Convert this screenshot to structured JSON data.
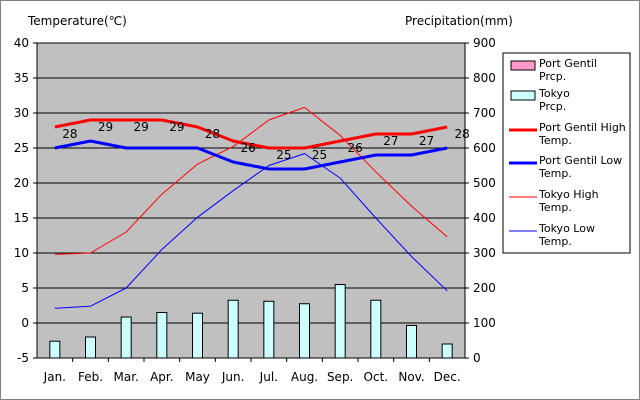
{
  "chart_data": {
    "type": "bar+line",
    "left_axis_title": "Temperature(℃)",
    "right_axis_title": "Precipitation(mm)",
    "months": [
      "Jan.",
      "Feb.",
      "Mar.",
      "Apr.",
      "May",
      "Jun.",
      "Jul.",
      "Aug.",
      "Sep.",
      "Oct.",
      "Nov.",
      "Dec."
    ],
    "temp_range": [
      -5,
      40
    ],
    "temp_ticks": [
      "40",
      "35",
      "30",
      "25",
      "20",
      "15",
      "10",
      "5",
      "0",
      "-5"
    ],
    "precip_range": [
      0,
      900
    ],
    "precip_ticks": [
      "900",
      "800",
      "700",
      "600",
      "500",
      "400",
      "300",
      "200",
      "100",
      "0"
    ],
    "series": [
      {
        "name": "Port Gentil Prcp.",
        "kind": "bar",
        "color": "#ff99cc",
        "values": [
          null,
          null,
          null,
          null,
          null,
          null,
          null,
          null,
          null,
          null,
          null,
          null
        ]
      },
      {
        "name": "Tokyo Prcp.",
        "kind": "bar",
        "color": "#ccffff",
        "values": [
          48,
          60,
          117,
          130,
          128,
          165,
          162,
          155,
          210,
          165,
          93,
          40
        ]
      },
      {
        "name": "Port Gentil High Temp.",
        "kind": "line",
        "color": "#ff0000",
        "width": "thick",
        "values": [
          28,
          29,
          29,
          29,
          28,
          26,
          25,
          25,
          26,
          27,
          27,
          28
        ]
      },
      {
        "name": "Port Gentil Low Temp.",
        "kind": "line",
        "color": "#0000ff",
        "width": "thick",
        "values": [
          25,
          26,
          25,
          25,
          25,
          23,
          22,
          22,
          23,
          24,
          24,
          25
        ]
      },
      {
        "name": "Tokyo High Temp.",
        "kind": "line",
        "color": "#ff0000",
        "width": "thin",
        "values": [
          9.8,
          10.0,
          13.0,
          18.4,
          22.7,
          25.2,
          29.0,
          30.8,
          26.8,
          21.6,
          16.7,
          12.3
        ]
      },
      {
        "name": "Tokyo Low Temp.",
        "kind": "line",
        "color": "#0000ff",
        "width": "thin",
        "values": [
          2.1,
          2.4,
          5.0,
          10.5,
          15.1,
          18.9,
          22.5,
          24.2,
          20.7,
          15.0,
          9.5,
          4.6
        ]
      }
    ],
    "data_labels": {
      "series": "Port Gentil High Temp.",
      "values": [
        "28",
        "29",
        "29",
        "29",
        "28",
        "26",
        "25",
        "25",
        "26",
        "27",
        "27",
        "28"
      ]
    },
    "legend": [
      "Port Gentil Prcp.",
      "Tokyo Prcp.",
      "Port Gentil High Temp.",
      "Port Gentil Low Temp.",
      "Tokyo High Temp.",
      "Tokyo Low Temp."
    ],
    "legend_position": "right",
    "plot_background": "#c0c0c0",
    "gridlines": true
  }
}
